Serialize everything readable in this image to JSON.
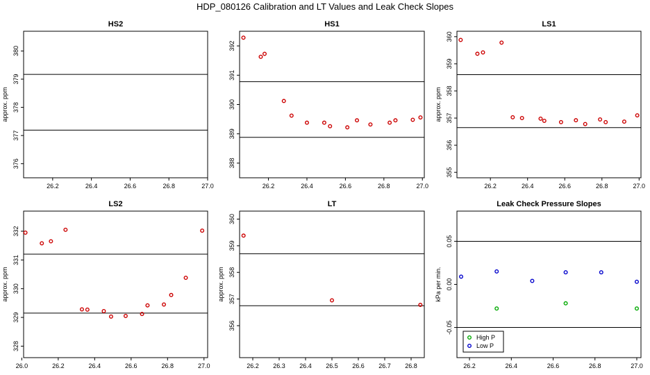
{
  "figure": {
    "title": "HDP_080126 Calibration and LT Values and Leak Check Slopes"
  },
  "chart_data": [
    {
      "type": "scatter",
      "title": "HS2",
      "ylabel": "approx. ppm",
      "xlim": [
        26.05,
        27.0
      ],
      "ylim": [
        375.5,
        380.7
      ],
      "xticks": [
        26.2,
        26.4,
        26.6,
        26.8,
        27.0
      ],
      "xticklabels": [
        "26.2",
        "26.4",
        "26.6",
        "26.8",
        "27.0"
      ],
      "yticks": [
        376,
        377,
        378,
        379,
        380
      ],
      "yticklabels": [
        "376",
        "377",
        "378",
        "379",
        "380"
      ],
      "hlines": [
        379.17,
        377.19
      ],
      "points_color": "#cc0000",
      "x": [],
      "y": []
    },
    {
      "type": "scatter",
      "title": "HS1",
      "ylabel": "",
      "xlim": [
        26.05,
        27.01
      ],
      "ylim": [
        387.5,
        392.5
      ],
      "xticks": [
        26.2,
        26.4,
        26.6,
        26.8,
        27.0
      ],
      "xticklabels": [
        "26.2",
        "26.4",
        "26.6",
        "26.8",
        "27.0"
      ],
      "yticks": [
        388,
        389,
        390,
        391,
        392
      ],
      "yticklabels": [
        "388",
        "389",
        "390",
        "391",
        "392"
      ],
      "hlines": [
        390.78,
        388.88
      ],
      "points_color": "#cc0000",
      "x": [
        26.07,
        26.16,
        26.18,
        26.28,
        26.32,
        26.4,
        26.49,
        26.52,
        26.61,
        26.66,
        26.73,
        26.83,
        26.86,
        26.95,
        26.99
      ],
      "y": [
        392.28,
        391.63,
        391.73,
        390.12,
        389.62,
        389.38,
        389.38,
        389.26,
        389.22,
        389.46,
        389.32,
        389.38,
        389.46,
        389.48,
        389.56
      ]
    },
    {
      "type": "scatter",
      "title": "LS1",
      "ylabel": "approx. ppm",
      "xlim": [
        26.02,
        27.01
      ],
      "ylim": [
        354.8,
        360.2
      ],
      "xticks": [
        26.2,
        26.4,
        26.6,
        26.8,
        27.0
      ],
      "xticklabels": [
        "26.2",
        "26.4",
        "26.6",
        "26.8",
        "27.0"
      ],
      "yticks": [
        355,
        356,
        357,
        358,
        359,
        360
      ],
      "yticklabels": [
        "355",
        "356",
        "357",
        "358",
        "359",
        "360"
      ],
      "hlines": [
        358.6,
        356.65
      ],
      "points_color": "#cc0000",
      "x": [
        26.04,
        26.13,
        26.16,
        26.26,
        26.32,
        26.37,
        26.47,
        26.49,
        26.58,
        26.66,
        26.71,
        26.79,
        26.82,
        26.92,
        26.99
      ],
      "y": [
        359.88,
        359.37,
        359.42,
        359.78,
        357.03,
        357.0,
        356.98,
        356.9,
        356.85,
        356.92,
        356.78,
        356.95,
        356.85,
        356.87,
        357.1
      ]
    },
    {
      "type": "scatter",
      "title": "LS2",
      "ylabel": "approx. ppm",
      "xlim": [
        26.01,
        27.02
      ],
      "ylim": [
        327.6,
        332.7
      ],
      "xticks": [
        26.0,
        26.2,
        26.4,
        26.6,
        26.8,
        27.0
      ],
      "xticklabels": [
        "26.0",
        "26.2",
        "26.4",
        "26.6",
        "26.8",
        "27.0"
      ],
      "yticks": [
        328,
        329,
        330,
        331,
        332
      ],
      "yticklabels": [
        "328",
        "329",
        "330",
        "331",
        "332"
      ],
      "hlines": [
        331.2,
        329.15
      ],
      "points_color": "#cc0000",
      "x": [
        26.02,
        26.11,
        26.16,
        26.24,
        26.33,
        26.36,
        26.45,
        26.49,
        26.57,
        26.66,
        26.69,
        26.78,
        26.82,
        26.9,
        26.99
      ],
      "y": [
        331.95,
        331.58,
        331.65,
        332.05,
        329.28,
        329.27,
        329.22,
        329.03,
        329.05,
        329.12,
        329.42,
        329.45,
        329.78,
        330.38,
        332.02
      ]
    },
    {
      "type": "scatter",
      "title": "LT",
      "ylabel": "approx. ppm",
      "xlim": [
        26.15,
        26.85
      ],
      "ylim": [
        354.8,
        360.3
      ],
      "xticks": [
        26.2,
        26.3,
        26.4,
        26.5,
        26.6,
        26.7,
        26.8
      ],
      "xticklabels": [
        "26.2",
        "26.3",
        "26.4",
        "26.5",
        "26.6",
        "26.7",
        "26.8"
      ],
      "yticks": [
        356,
        357,
        358,
        359,
        360
      ],
      "yticklabels": [
        "356",
        "357",
        "358",
        "359",
        "360"
      ],
      "hlines": [
        358.7,
        356.75
      ],
      "points_color": "#cc0000",
      "x": [
        26.165,
        26.5,
        26.835
      ],
      "y": [
        359.38,
        356.95,
        356.78
      ]
    },
    {
      "type": "scatter",
      "title": "Leak Check Pressure Slopes",
      "ylabel": "kPa per min.",
      "xlim": [
        26.14,
        27.02
      ],
      "ylim": [
        -0.085,
        0.085
      ],
      "xticks": [
        26.2,
        26.4,
        26.6,
        26.8,
        27.0
      ],
      "xticklabels": [
        "26.2",
        "26.4",
        "26.6",
        "26.8",
        "27.0"
      ],
      "yticks": [
        -0.05,
        0.0,
        0.05
      ],
      "yticklabels": [
        "-0.05",
        "0.00",
        "0.05"
      ],
      "hlines": [
        0.05,
        -0.05
      ],
      "legend": {
        "position": "bottom-left",
        "entries": [
          "High P",
          "Low P"
        ]
      },
      "series": [
        {
          "name": "High P",
          "color": "#00aa00",
          "x": [
            26.33,
            26.66,
            27.0
          ],
          "y": [
            -0.028,
            -0.022,
            -0.028
          ]
        },
        {
          "name": "Low P",
          "color": "#0000cc",
          "x": [
            26.16,
            26.33,
            26.5,
            26.66,
            26.83,
            27.0
          ],
          "y": [
            0.009,
            0.015,
            0.004,
            0.014,
            0.014,
            0.003
          ]
        }
      ]
    }
  ]
}
